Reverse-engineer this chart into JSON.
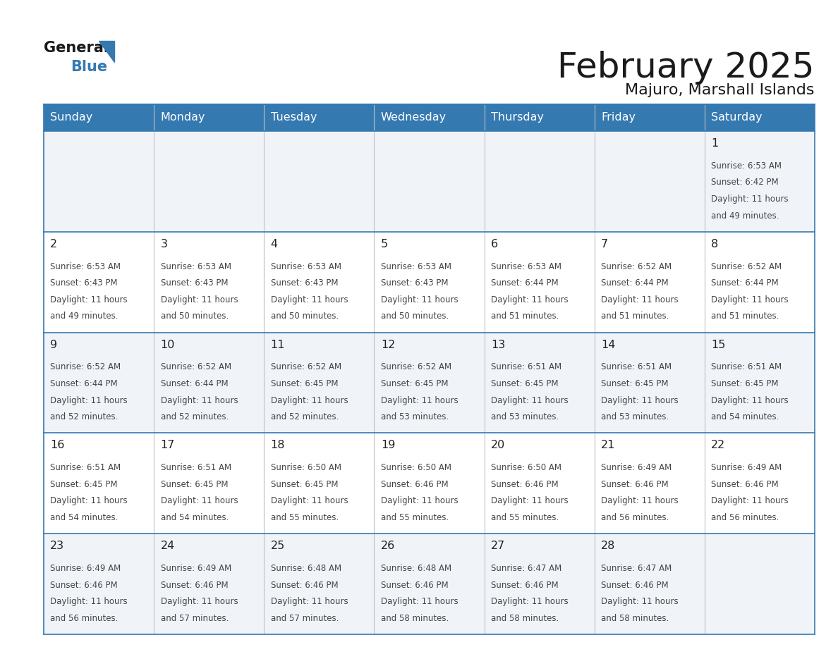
{
  "title": "February 2025",
  "subtitle": "Majuro, Marshall Islands",
  "header_color": "#3579b1",
  "header_text_color": "#ffffff",
  "border_color": "#3579b1",
  "day_headers": [
    "Sunday",
    "Monday",
    "Tuesday",
    "Wednesday",
    "Thursday",
    "Friday",
    "Saturday"
  ],
  "title_color": "#1a1a1a",
  "subtitle_color": "#1a1a1a",
  "day_num_color": "#222222",
  "info_color": "#444444",
  "row_bg_odd": "#f0f4f8",
  "row_bg_even": "#ffffff",
  "calendar": [
    [
      null,
      null,
      null,
      null,
      null,
      null,
      {
        "day": "1",
        "sunrise": "6:53 AM",
        "sunset": "6:42 PM",
        "daylight_h": "11 hours",
        "daylight_m": "49 minutes."
      }
    ],
    [
      {
        "day": "2",
        "sunrise": "6:53 AM",
        "sunset": "6:43 PM",
        "daylight_h": "11 hours",
        "daylight_m": "49 minutes."
      },
      {
        "day": "3",
        "sunrise": "6:53 AM",
        "sunset": "6:43 PM",
        "daylight_h": "11 hours",
        "daylight_m": "50 minutes."
      },
      {
        "day": "4",
        "sunrise": "6:53 AM",
        "sunset": "6:43 PM",
        "daylight_h": "11 hours",
        "daylight_m": "50 minutes."
      },
      {
        "day": "5",
        "sunrise": "6:53 AM",
        "sunset": "6:43 PM",
        "daylight_h": "11 hours",
        "daylight_m": "50 minutes."
      },
      {
        "day": "6",
        "sunrise": "6:53 AM",
        "sunset": "6:44 PM",
        "daylight_h": "11 hours",
        "daylight_m": "51 minutes."
      },
      {
        "day": "7",
        "sunrise": "6:52 AM",
        "sunset": "6:44 PM",
        "daylight_h": "11 hours",
        "daylight_m": "51 minutes."
      },
      {
        "day": "8",
        "sunrise": "6:52 AM",
        "sunset": "6:44 PM",
        "daylight_h": "11 hours",
        "daylight_m": "51 minutes."
      }
    ],
    [
      {
        "day": "9",
        "sunrise": "6:52 AM",
        "sunset": "6:44 PM",
        "daylight_h": "11 hours",
        "daylight_m": "52 minutes."
      },
      {
        "day": "10",
        "sunrise": "6:52 AM",
        "sunset": "6:44 PM",
        "daylight_h": "11 hours",
        "daylight_m": "52 minutes."
      },
      {
        "day": "11",
        "sunrise": "6:52 AM",
        "sunset": "6:45 PM",
        "daylight_h": "11 hours",
        "daylight_m": "52 minutes."
      },
      {
        "day": "12",
        "sunrise": "6:52 AM",
        "sunset": "6:45 PM",
        "daylight_h": "11 hours",
        "daylight_m": "53 minutes."
      },
      {
        "day": "13",
        "sunrise": "6:51 AM",
        "sunset": "6:45 PM",
        "daylight_h": "11 hours",
        "daylight_m": "53 minutes."
      },
      {
        "day": "14",
        "sunrise": "6:51 AM",
        "sunset": "6:45 PM",
        "daylight_h": "11 hours",
        "daylight_m": "53 minutes."
      },
      {
        "day": "15",
        "sunrise": "6:51 AM",
        "sunset": "6:45 PM",
        "daylight_h": "11 hours",
        "daylight_m": "54 minutes."
      }
    ],
    [
      {
        "day": "16",
        "sunrise": "6:51 AM",
        "sunset": "6:45 PM",
        "daylight_h": "11 hours",
        "daylight_m": "54 minutes."
      },
      {
        "day": "17",
        "sunrise": "6:51 AM",
        "sunset": "6:45 PM",
        "daylight_h": "11 hours",
        "daylight_m": "54 minutes."
      },
      {
        "day": "18",
        "sunrise": "6:50 AM",
        "sunset": "6:45 PM",
        "daylight_h": "11 hours",
        "daylight_m": "55 minutes."
      },
      {
        "day": "19",
        "sunrise": "6:50 AM",
        "sunset": "6:46 PM",
        "daylight_h": "11 hours",
        "daylight_m": "55 minutes."
      },
      {
        "day": "20",
        "sunrise": "6:50 AM",
        "sunset": "6:46 PM",
        "daylight_h": "11 hours",
        "daylight_m": "55 minutes."
      },
      {
        "day": "21",
        "sunrise": "6:49 AM",
        "sunset": "6:46 PM",
        "daylight_h": "11 hours",
        "daylight_m": "56 minutes."
      },
      {
        "day": "22",
        "sunrise": "6:49 AM",
        "sunset": "6:46 PM",
        "daylight_h": "11 hours",
        "daylight_m": "56 minutes."
      }
    ],
    [
      {
        "day": "23",
        "sunrise": "6:49 AM",
        "sunset": "6:46 PM",
        "daylight_h": "11 hours",
        "daylight_m": "56 minutes."
      },
      {
        "day": "24",
        "sunrise": "6:49 AM",
        "sunset": "6:46 PM",
        "daylight_h": "11 hours",
        "daylight_m": "57 minutes."
      },
      {
        "day": "25",
        "sunrise": "6:48 AM",
        "sunset": "6:46 PM",
        "daylight_h": "11 hours",
        "daylight_m": "57 minutes."
      },
      {
        "day": "26",
        "sunrise": "6:48 AM",
        "sunset": "6:46 PM",
        "daylight_h": "11 hours",
        "daylight_m": "58 minutes."
      },
      {
        "day": "27",
        "sunrise": "6:47 AM",
        "sunset": "6:46 PM",
        "daylight_h": "11 hours",
        "daylight_m": "58 minutes."
      },
      {
        "day": "28",
        "sunrise": "6:47 AM",
        "sunset": "6:46 PM",
        "daylight_h": "11 hours",
        "daylight_m": "58 minutes."
      },
      null
    ]
  ]
}
